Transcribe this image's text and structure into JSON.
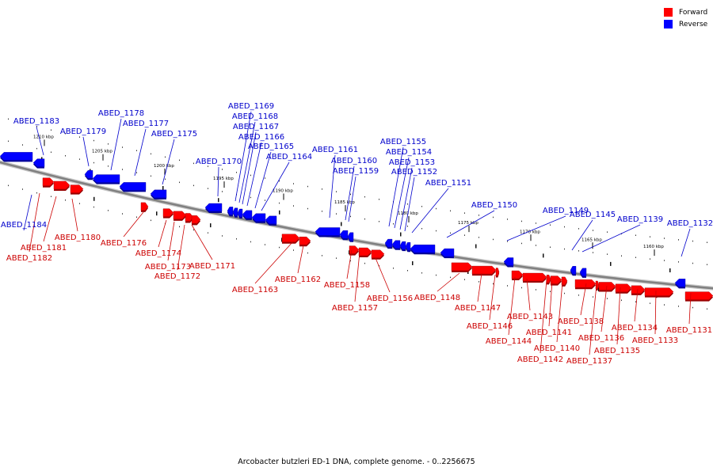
{
  "legend": {
    "items": [
      {
        "label": "Forward",
        "color": "#ff0000"
      },
      {
        "label": "Reverse",
        "color": "#0000ff"
      }
    ]
  },
  "caption": "Arcobacter butzleri ED-1 DNA, complete genome. - 0..2256675",
  "colors": {
    "forward": "#ff0000",
    "reverse": "#0000ff",
    "forward_label": "#cc0000",
    "reverse_label": "#0000cc",
    "backbone": "#808080"
  },
  "ticks": [
    "1210 kbp",
    "1205 kbp",
    "1200 kbp",
    "1195 kbp",
    "1190 kbp",
    "1185 kbp",
    "1180 kbp",
    "1175 kbp",
    "1170 kbp",
    "1165 kbp",
    "1160 kbp"
  ],
  "genes": [
    {
      "name": "ABED_1184",
      "strand": "reverse"
    },
    {
      "name": "ABED_1183",
      "strand": "reverse"
    },
    {
      "name": "ABED_1182",
      "strand": "forward"
    },
    {
      "name": "ABED_1181",
      "strand": "forward"
    },
    {
      "name": "ABED_1180",
      "strand": "forward"
    },
    {
      "name": "ABED_1179",
      "strand": "reverse"
    },
    {
      "name": "ABED_1178",
      "strand": "reverse"
    },
    {
      "name": "ABED_1177",
      "strand": "reverse"
    },
    {
      "name": "ABED_1176",
      "strand": "forward"
    },
    {
      "name": "ABED_1175",
      "strand": "reverse"
    },
    {
      "name": "ABED_1174",
      "strand": "forward"
    },
    {
      "name": "ABED_1173",
      "strand": "forward"
    },
    {
      "name": "ABED_1172",
      "strand": "forward"
    },
    {
      "name": "ABED_1171",
      "strand": "forward"
    },
    {
      "name": "ABED_1170",
      "strand": "reverse"
    },
    {
      "name": "ABED_1169",
      "strand": "reverse"
    },
    {
      "name": "ABED_1168",
      "strand": "reverse"
    },
    {
      "name": "ABED_1167",
      "strand": "reverse"
    },
    {
      "name": "ABED_1166",
      "strand": "reverse"
    },
    {
      "name": "ABED_1165",
      "strand": "reverse"
    },
    {
      "name": "ABED_1164",
      "strand": "reverse"
    },
    {
      "name": "ABED_1163",
      "strand": "forward"
    },
    {
      "name": "ABED_1162",
      "strand": "forward"
    },
    {
      "name": "ABED_1161",
      "strand": "reverse"
    },
    {
      "name": "ABED_1160",
      "strand": "reverse"
    },
    {
      "name": "ABED_1159",
      "strand": "reverse"
    },
    {
      "name": "ABED_1158",
      "strand": "forward"
    },
    {
      "name": "ABED_1157",
      "strand": "forward"
    },
    {
      "name": "ABED_1156",
      "strand": "forward"
    },
    {
      "name": "ABED_1155",
      "strand": "reverse"
    },
    {
      "name": "ABED_1154",
      "strand": "reverse"
    },
    {
      "name": "ABED_1153",
      "strand": "reverse"
    },
    {
      "name": "ABED_1152",
      "strand": "reverse"
    },
    {
      "name": "ABED_1151",
      "strand": "reverse"
    },
    {
      "name": "ABED_1150",
      "strand": "reverse"
    },
    {
      "name": "ABED_1149",
      "strand": "reverse"
    },
    {
      "name": "ABED_1148",
      "strand": "forward"
    },
    {
      "name": "ABED_1147",
      "strand": "forward"
    },
    {
      "name": "ABED_1146",
      "strand": "forward"
    },
    {
      "name": "ABED_1145",
      "strand": "reverse"
    },
    {
      "name": "ABED_1144",
      "strand": "forward"
    },
    {
      "name": "ABED_1143",
      "strand": "forward"
    },
    {
      "name": "ABED_1142",
      "strand": "forward"
    },
    {
      "name": "ABED_1141",
      "strand": "forward"
    },
    {
      "name": "ABED_1140",
      "strand": "forward"
    },
    {
      "name": "ABED_1139",
      "strand": "reverse"
    },
    {
      "name": "ABED_1138",
      "strand": "forward"
    },
    {
      "name": "ABED_1137",
      "strand": "forward"
    },
    {
      "name": "ABED_1136",
      "strand": "forward"
    },
    {
      "name": "ABED_1135",
      "strand": "forward"
    },
    {
      "name": "ABED_1134",
      "strand": "forward"
    },
    {
      "name": "ABED_1133",
      "strand": "forward"
    },
    {
      "name": "ABED_1132",
      "strand": "reverse"
    },
    {
      "name": "ABED_1131",
      "strand": "forward"
    }
  ]
}
